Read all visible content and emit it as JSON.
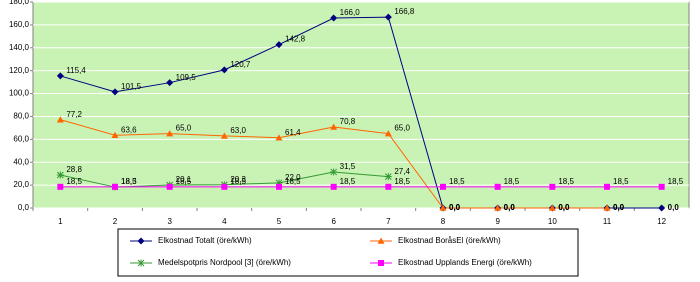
{
  "chart_data": {
    "type": "line",
    "categories": [
      "1",
      "2",
      "3",
      "4",
      "5",
      "6",
      "7",
      "8",
      "9",
      "10",
      "11",
      "12"
    ],
    "ylim": [
      0,
      180
    ],
    "yticks": [
      {
        "value": 0,
        "label": "0,0"
      },
      {
        "value": 20,
        "label": "20,0"
      },
      {
        "value": 40,
        "label": "40,0"
      },
      {
        "value": 60,
        "label": "60,0"
      },
      {
        "value": 80,
        "label": "80,0"
      },
      {
        "value": 100,
        "label": "100,0"
      },
      {
        "value": 120,
        "label": "120,0"
      },
      {
        "value": 140,
        "label": "140,0"
      },
      {
        "value": 160,
        "label": "160,0"
      },
      {
        "value": 180,
        "label": "180,0"
      }
    ],
    "grid": true,
    "series": [
      {
        "name": "Elkostnad Totalt (öre/kWh)",
        "color": "#000080",
        "marker": "diamond",
        "values": [
          115.4,
          101.5,
          109.5,
          120.7,
          142.8,
          166.0,
          166.8,
          0,
          0,
          0,
          0,
          0
        ],
        "value_labels": [
          "115,4",
          "101,5",
          "109,5",
          "120,7",
          "142,8",
          "166,0",
          "166,8",
          "0,0",
          "0,0",
          "0,0",
          "0,0",
          "0,0"
        ]
      },
      {
        "name": "Elkostnad BoråsEl (öre/kWh)",
        "color": "#ff6600",
        "marker": "triangle",
        "values": [
          77.2,
          63.6,
          65.0,
          63.0,
          61.4,
          70.8,
          65.0,
          0,
          0,
          0,
          0,
          null
        ],
        "value_labels": [
          "77,2",
          "63,6",
          "65,0",
          "63,0",
          "61,4",
          "70,8",
          "65,0",
          "0,0",
          "0,0",
          "0,0",
          "0,0",
          null
        ]
      },
      {
        "name": "Medelspotpris Nordpool [3] (öre/kWh)",
        "color": "#339933",
        "marker": "star",
        "values": [
          28.8,
          18.3,
          20.1,
          20.3,
          22.0,
          31.5,
          27.4,
          null,
          null,
          null,
          null,
          null
        ],
        "value_labels": [
          "28,8",
          "18,3",
          "20,1",
          "20,3",
          "22,0",
          "31,5",
          "27,4",
          null,
          null,
          null,
          null,
          null
        ]
      },
      {
        "name": "Elkostnad Upplands Energi (öre/kWh)",
        "color": "#ff00ff",
        "marker": "square",
        "values": [
          18.5,
          18.5,
          18.5,
          18.5,
          18.5,
          18.5,
          18.5,
          18.5,
          18.5,
          18.5,
          18.5,
          18.5
        ],
        "value_labels": [
          "18,5",
          "18,5",
          "18,5",
          "18,5",
          "18,5",
          "18,5",
          "18,5",
          "18,5",
          "18,5",
          "18,5",
          "18,5",
          "18,5"
        ]
      }
    ]
  }
}
